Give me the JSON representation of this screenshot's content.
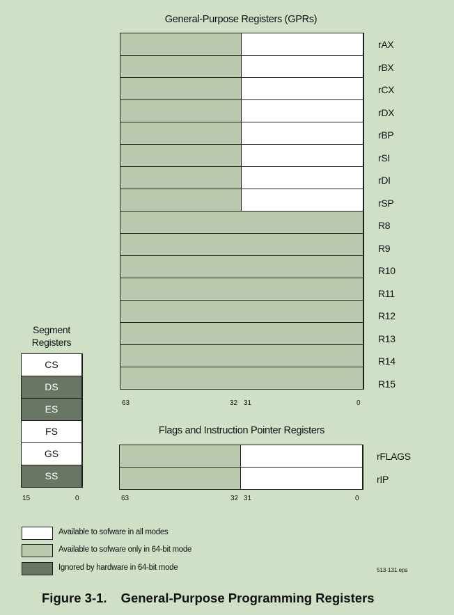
{
  "gpr": {
    "title": "General-Purpose Registers (GPRs)",
    "registers": [
      {
        "name": "rAX",
        "split": true
      },
      {
        "name": "rBX",
        "split": true
      },
      {
        "name": "rCX",
        "split": true
      },
      {
        "name": "rDX",
        "split": true
      },
      {
        "name": "rBP",
        "split": true
      },
      {
        "name": "rSI",
        "split": true
      },
      {
        "name": "rDI",
        "split": true
      },
      {
        "name": "rSP",
        "split": true
      },
      {
        "name": "R8",
        "split": false
      },
      {
        "name": "R9",
        "split": false
      },
      {
        "name": "R10",
        "split": false
      },
      {
        "name": "R11",
        "split": false
      },
      {
        "name": "R12",
        "split": false
      },
      {
        "name": "R13",
        "split": false
      },
      {
        "name": "R14",
        "split": false
      },
      {
        "name": "R15",
        "split": false
      }
    ],
    "bits": {
      "high": "63",
      "mid_high": "32",
      "mid_low": "31",
      "low": "0"
    }
  },
  "flags": {
    "title": "Flags and Instruction Pointer Registers",
    "registers": [
      {
        "name": "rFLAGS"
      },
      {
        "name": "rIP"
      }
    ],
    "bits": {
      "high": "63",
      "mid_high": "32",
      "mid_low": "31",
      "low": "0"
    }
  },
  "segment": {
    "title_line1": "Segment",
    "title_line2": "Registers",
    "registers": [
      {
        "name": "CS",
        "style": "white"
      },
      {
        "name": "DS",
        "style": "dark"
      },
      {
        "name": "ES",
        "style": "dark"
      },
      {
        "name": "FS",
        "style": "white"
      },
      {
        "name": "GS",
        "style": "white"
      },
      {
        "name": "SS",
        "style": "dark"
      }
    ],
    "bits": {
      "high": "15",
      "low": "0"
    }
  },
  "legend": [
    {
      "text": "Available to sofware in all modes",
      "color": "#ffffff"
    },
    {
      "text": "Available to sofware only in 64-bit mode",
      "color": "#bcc9ae"
    },
    {
      "text": "Ignored by hardware in 64-bit mode",
      "color": "#6a7664"
    }
  ],
  "caption": {
    "number": "Figure 3-1.",
    "title": "General-Purpose Programming Registers"
  },
  "file_id": "513-131.eps",
  "colors": {
    "background": "#cfe0c7",
    "white_region": "#ffffff",
    "light_region": "#bcc9ae",
    "dark_region": "#6a7664"
  }
}
